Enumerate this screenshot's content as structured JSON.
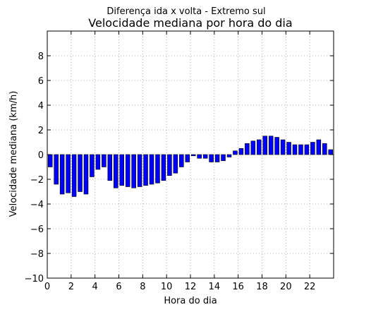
{
  "chart_data": {
    "type": "bar",
    "suptitle": "Diferença ida x volta - Extremo sul",
    "title": "Velocidade mediana por hora do dia",
    "xlabel": "Hora do dia",
    "ylabel": "Velocidade mediana (km/h)",
    "xlim": [
      0,
      24
    ],
    "ylim": [
      -10,
      10
    ],
    "xticks": [
      0,
      2,
      4,
      6,
      8,
      10,
      12,
      14,
      16,
      18,
      20,
      22
    ],
    "yticks": [
      -10,
      -8,
      -6,
      -4,
      -2,
      0,
      2,
      4,
      6,
      8
    ],
    "grid": true,
    "bar_width": 0.35,
    "bar_color": "#0000ff",
    "x": [
      0.25,
      0.75,
      1.25,
      1.75,
      2.25,
      2.75,
      3.25,
      3.75,
      4.25,
      4.75,
      5.25,
      5.75,
      6.25,
      6.75,
      7.25,
      7.75,
      8.25,
      8.75,
      9.25,
      9.75,
      10.25,
      10.75,
      11.25,
      11.75,
      12.25,
      12.75,
      13.25,
      13.75,
      14.25,
      14.75,
      15.25,
      15.75,
      16.25,
      16.75,
      17.25,
      17.75,
      18.25,
      18.75,
      19.25,
      19.75,
      20.25,
      20.75,
      21.25,
      21.75,
      22.25,
      22.75,
      23.25,
      23.75
    ],
    "values": [
      -1.0,
      -2.4,
      -3.2,
      -3.1,
      -3.4,
      -3.0,
      -3.2,
      -1.8,
      -1.2,
      -1.0,
      -2.1,
      -2.7,
      -2.5,
      -2.6,
      -2.7,
      -2.6,
      -2.5,
      -2.4,
      -2.3,
      -2.1,
      -1.7,
      -1.5,
      -1.0,
      -0.6,
      -0.1,
      -0.3,
      -0.3,
      -0.6,
      -0.6,
      -0.5,
      -0.2,
      0.3,
      0.5,
      0.9,
      1.1,
      1.2,
      1.5,
      1.5,
      1.4,
      1.2,
      1.0,
      0.8,
      0.8,
      0.8,
      1.0,
      1.2,
      0.9,
      0.4
    ]
  }
}
